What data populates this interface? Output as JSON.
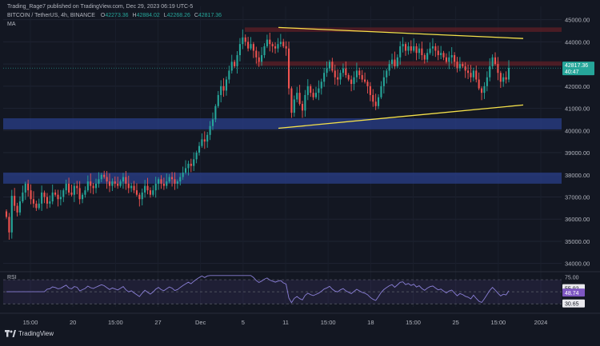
{
  "header": {
    "published_line": "Trading_Rage7 published on TradingView.com, Dec 29, 2023 06:19 UTC-5",
    "symbol_line": "BITCOIN / TetherUS, 4h, BINANCE",
    "ohlc": {
      "o_label": "O",
      "o": "42273.36",
      "h_label": "H",
      "h": "42884.02",
      "l_label": "L",
      "l": "42268.26",
      "c_label": "C",
      "c": "42817.36"
    },
    "indicator": "MA"
  },
  "rsi_label": "RSI",
  "footer": {
    "brand": "TradingView"
  },
  "colors": {
    "background": "#131722",
    "up": "#26a69a",
    "down": "#ef5350",
    "support_zone": "#2a3f8a",
    "resistance_zone": "#5a1e26",
    "trendline": "#f5e14a",
    "rsi_line": "#8a7fd6"
  },
  "chart_data": [
    {
      "type": "candlestick",
      "title": "BITCOIN / TetherUS, 4h, BINANCE",
      "ylim": [
        33700,
        45600
      ],
      "y_ticks": [
        "45000.00",
        "44000.00",
        "43000.00",
        "42000.00",
        "41000.00",
        "40000.00",
        "39000.00",
        "38000.00",
        "37000.00",
        "36000.00",
        "35000.00",
        "34000.00"
      ],
      "x_ticks": [
        "15:00",
        "20",
        "15:00",
        "27",
        "Dec",
        "5",
        "11",
        "15:00",
        "18",
        "15:00",
        "25",
        "15:00",
        "2024"
      ],
      "price_label": {
        "price": "42817.36",
        "countdown": "40:47"
      },
      "zones": [
        {
          "kind": "resistance",
          "from": 44450,
          "to": 44650
        },
        {
          "kind": "resistance",
          "from": 42920,
          "to": 43120
        },
        {
          "kind": "support",
          "from": 40050,
          "to": 40550
        },
        {
          "kind": "support",
          "from": 37600,
          "to": 38100
        }
      ],
      "trendlines": [
        {
          "kind": "upper",
          "from_price": 44650,
          "to_price": 44150
        },
        {
          "kind": "lower",
          "from_price": 40100,
          "to_price": 41150
        }
      ],
      "closes": [
        36100,
        35400,
        37050,
        36600,
        36300,
        36800,
        37200,
        37600,
        37300,
        36900,
        36700,
        36500,
        36700,
        37200,
        37000,
        36700,
        36800,
        37200,
        37100,
        36900,
        37000,
        37300,
        37600,
        37200,
        37100,
        37500,
        37400,
        36900,
        37100,
        37300,
        37700,
        37500,
        37400,
        37600,
        37800,
        38000,
        37900,
        37700,
        37500,
        37700,
        37600,
        37500,
        37700,
        37900,
        37600,
        37400,
        37500,
        37300,
        37100,
        36900,
        37200,
        37500,
        37300,
        37100,
        37300,
        37600,
        37800,
        37600,
        37500,
        37700,
        37900,
        37800,
        37600,
        37700,
        37900,
        38100,
        38300,
        38500,
        38400,
        38700,
        39000,
        39300,
        39600,
        39500,
        39800,
        40200,
        40500,
        41100,
        41600,
        42000,
        41800,
        42300,
        42700,
        43100,
        42900,
        43400,
        43900,
        44200,
        44000,
        43700,
        43900,
        43600,
        43300,
        43100,
        43400,
        43800,
        44100,
        43900,
        43800,
        43700,
        43900,
        44000,
        43800,
        43700,
        41900,
        40800,
        41400,
        41700,
        41200,
        40900,
        41600,
        42000,
        41700,
        41500,
        41700,
        41900,
        42200,
        42600,
        42800,
        43100,
        42700,
        42400,
        42300,
        42600,
        42800,
        42500,
        42300,
        42100,
        42400,
        42700,
        42500,
        42300,
        42200,
        42000,
        41600,
        41300,
        41100,
        41500,
        42000,
        42400,
        42700,
        43000,
        43200,
        42900,
        43300,
        43800,
        43900,
        43600,
        43800,
        43600,
        43800,
        43500,
        43700,
        43400,
        43200,
        43500,
        43700,
        43800,
        43600,
        43400,
        43500,
        43300,
        43100,
        43300,
        43400,
        43100,
        42800,
        43000,
        42900,
        42700,
        42600,
        42400,
        42700,
        42300,
        41900,
        41700,
        42000,
        42400,
        42900,
        43300,
        43000,
        42600,
        42200,
        42400,
        42300,
        42817
      ]
    },
    {
      "type": "line",
      "title": "RSI",
      "ylim": [
        25,
        78
      ],
      "y_ticks": [
        "75.00",
        "55.92",
        "48.74",
        "30.65"
      ],
      "levels": [
        70,
        50,
        30
      ]
    }
  ]
}
